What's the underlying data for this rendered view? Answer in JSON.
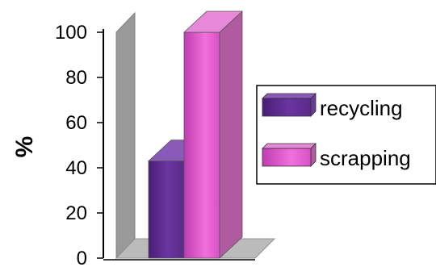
{
  "chart_data": {
    "type": "bar",
    "title": "",
    "xlabel": "",
    "ylabel": "%",
    "ylim": [
      0,
      100
    ],
    "yticks": [
      0,
      20,
      40,
      60,
      80,
      100
    ],
    "categories": [
      ""
    ],
    "series": [
      {
        "name": "recycling",
        "values": [
          43
        ],
        "color": "#7b3fa0"
      },
      {
        "name": "scrapping",
        "values": [
          100
        ],
        "color": "#e050c8"
      }
    ],
    "legend_position": "right",
    "style": "3d-clustered-column"
  }
}
